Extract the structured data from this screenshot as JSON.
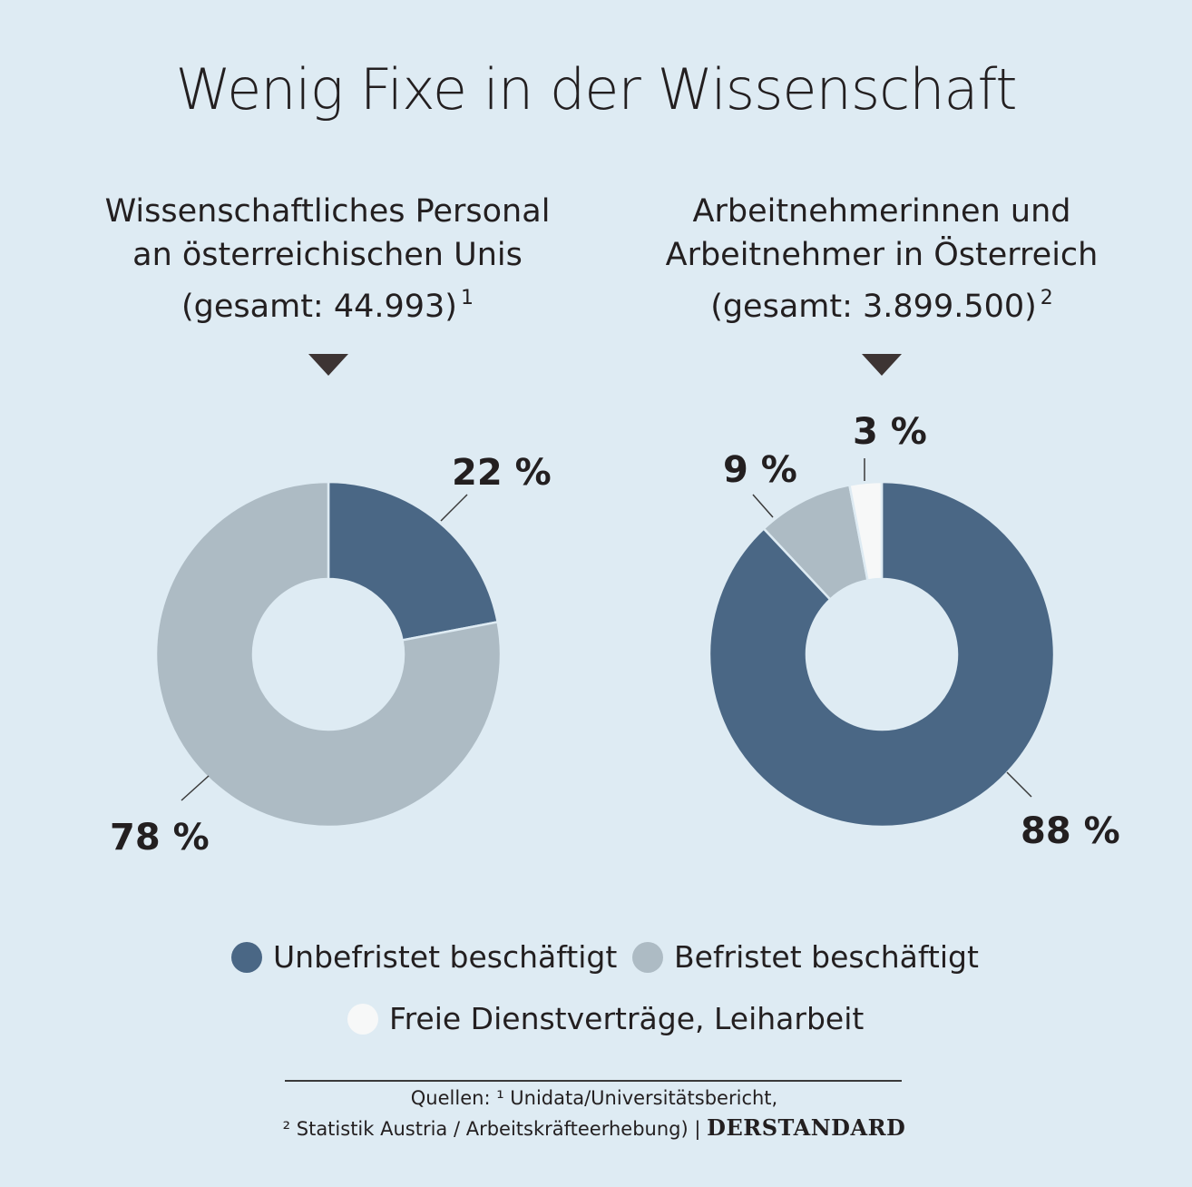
{
  "title": "Wenig Fixe in der Wissenschaft",
  "colors": {
    "background": "#deebf3",
    "unbefristet": "#4a6785",
    "befristet": "#adbbc4",
    "freie": "#f7f8f8",
    "text": "#231f20"
  },
  "legend": {
    "items": [
      {
        "label": "Unbefristet beschäftigt",
        "color": "#4a6785"
      },
      {
        "label": "Befristet beschäftigt",
        "color": "#adbbc4"
      },
      {
        "label": "Freie Dienstverträge, Leiharbeit",
        "color": "#f7f8f8"
      }
    ]
  },
  "chart_data": [
    {
      "type": "pie",
      "subtitle_lines": [
        "Wissenschaftliches Personal",
        "an österreichischen Unis",
        "(gesamt: 44.993)"
      ],
      "footnote_mark": "1",
      "slices": [
        {
          "name": "Unbefristet beschäftigt",
          "value": 22,
          "label": "22 %",
          "color": "#4a6785"
        },
        {
          "name": "Befristet beschäftigt",
          "value": 78,
          "label": "78 %",
          "color": "#adbbc4"
        }
      ]
    },
    {
      "type": "pie",
      "subtitle_lines": [
        "Arbeitnehmerinnen und",
        "Arbeitnehmer in Österreich",
        "(gesamt: 3.899.500)"
      ],
      "footnote_mark": "2",
      "slices": [
        {
          "name": "Unbefristet beschäftigt",
          "value": 88,
          "label": "88 %",
          "color": "#4a6785"
        },
        {
          "name": "Befristet beschäftigt",
          "value": 9,
          "label": "9 %",
          "color": "#adbbc4"
        },
        {
          "name": "Freie Dienstverträge, Leiharbeit",
          "value": 3,
          "label": "3 %",
          "color": "#f7f8f8"
        }
      ]
    }
  ],
  "source": {
    "line1": "Quellen: ¹ Unidata/Universitätsbericht,",
    "line2": "² Statistik Austria / Arbeitskräfteerhebung) |",
    "logo": "DERSTANDARD"
  }
}
